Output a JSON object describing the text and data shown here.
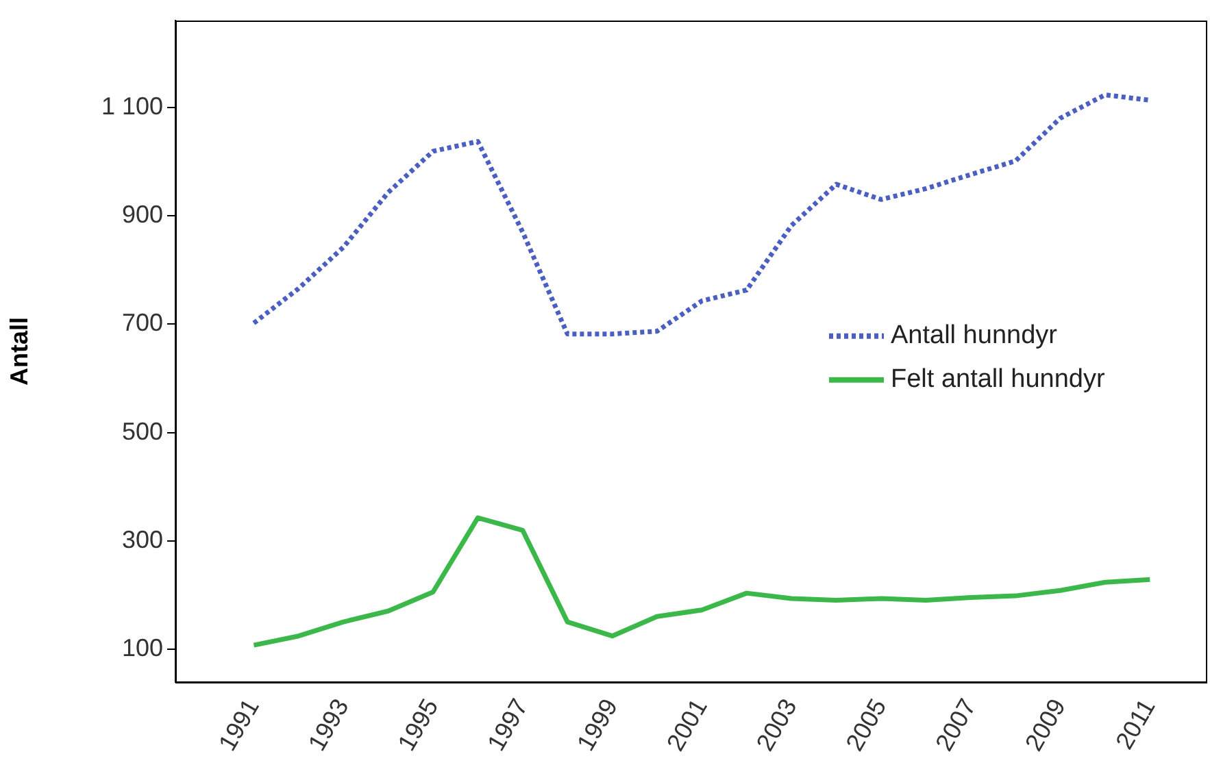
{
  "chart_data": {
    "type": "line",
    "ylabel": "Antall",
    "x": [
      1991,
      1992,
      1993,
      1994,
      1995,
      1996,
      1997,
      1998,
      1999,
      2000,
      2001,
      2002,
      2003,
      2004,
      2005,
      2006,
      2007,
      2008,
      2009,
      2010,
      2011
    ],
    "series": [
      {
        "name": "Antall hunndyr",
        "color": "#4a5fc1",
        "line_style": "dotted",
        "values": [
          702,
          766,
          842,
          943,
          1019,
          1037,
          870,
          682,
          682,
          687,
          743,
          763,
          882,
          958,
          930,
          950,
          976,
          1001,
          1080,
          1123,
          1113
        ]
      },
      {
        "name": "Felt antall hunndyr",
        "color": "#3cb84a",
        "line_style": "solid",
        "values": [
          108,
          125,
          151,
          171,
          206,
          343,
          320,
          151,
          125,
          161,
          173,
          204,
          194,
          191,
          194,
          191,
          196,
          199,
          209,
          224,
          229
        ]
      }
    ],
    "xlim": [
      1989.25,
      2012.25
    ],
    "xticks": [
      1991,
      1993,
      1995,
      1997,
      1999,
      2001,
      2003,
      2005,
      2007,
      2009,
      2011
    ],
    "ylim": [
      40,
      1260
    ],
    "yticks": [
      100,
      300,
      500,
      700,
      900,
      {
        "value": 1100,
        "label": "1 100"
      }
    ],
    "grid": false,
    "legend": "right",
    "marker": "none"
  }
}
